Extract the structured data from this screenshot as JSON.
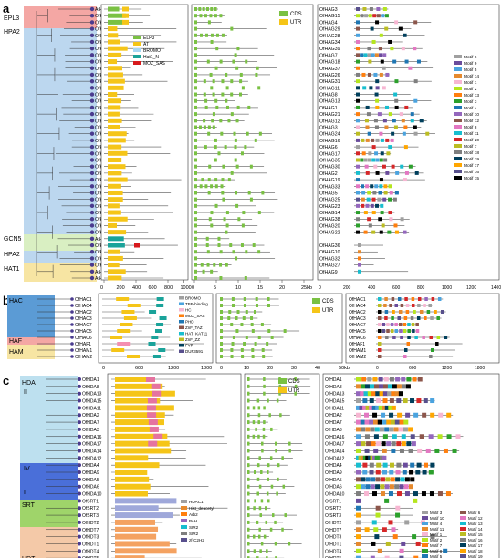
{
  "panels": {
    "a": {
      "label": "a",
      "groups": [
        {
          "name": "EPL3",
          "color": "#e8747a"
        },
        {
          "name": "HPA2",
          "color": "#5b9bd5"
        },
        {
          "name": "GCN5",
          "color": "#9fd46a"
        },
        {
          "name": "HPA2",
          "color": "#5b9bd5"
        },
        {
          "name": "HAT1",
          "color": "#f2d04f"
        }
      ],
      "genes": [
        "OfHAG3",
        "OfHAG15",
        "OfHAG4",
        "OfHAG29",
        "OfHAG28",
        "OfHAG34",
        "OfHAG39",
        "OfHAG7",
        "OfHAG18",
        "OfHAG37",
        "OfHAG26",
        "OfHAG31",
        "OfHAG11",
        "OfHAG8",
        "OfHAG13",
        "OfHAG1",
        "OfHAG21",
        "OfHAG12",
        "OfHAG3",
        "OfHAG24",
        "OfHAG16",
        "OfHAG6",
        "OfHAG17",
        "OfHAG35",
        "OfHAG30",
        "OfHAG2",
        "OfHAG19",
        "OfHAG33",
        "OfHAG5",
        "OfHAG25",
        "OfHAG23",
        "OfHAG14",
        "OfHAG38",
        "OfHAG20",
        "OfHAG22"
      ],
      "tree_genes": [
        "AtHAG3",
        "OfHAG15",
        "OfHAG4",
        "OfHAG29",
        "OfHAG28",
        "OfHAG34",
        "OfHAG39",
        "OfHAG7",
        "OfHAG18",
        "OfHAG37",
        "OfHAG26",
        "OfHAG31",
        "OfHAG11",
        "OfHAG8",
        "OfHAG13",
        "OfHAG1",
        "OfHAG21",
        "OfHAG12",
        "OfHAG3",
        "OfHAG24",
        "OfHAG16",
        "OfHAG6",
        "OfHAG17",
        "OfHAG35",
        "OfHAG30",
        "OfHAG2",
        "OfHAG19",
        "OfHAG33",
        "OfHAG5",
        "OfHAG25",
        "OfHAG23",
        "OfHAG14",
        "OfHAG38",
        "OfHAG20",
        "OfHAG22",
        "AtHAG1",
        "OfHAG36",
        "OfHAG10",
        "OfHAG32",
        "OfHAG27",
        "AtHAG9",
        "AtHAG2"
      ],
      "extra_genes": [
        "OfHAG36",
        "OfHAG10",
        "OfHAG32",
        "OfHAG27",
        "OfHAG9"
      ],
      "domain_legend": [
        "ELP3",
        "AT",
        "BROMO",
        "Hat1_N",
        "MOZ_SAS"
      ],
      "domain_colors": [
        "#7ac143",
        "#f5c518",
        "#a7d7f5",
        "#1aa39a",
        "#d7191c"
      ],
      "domain_axis": [
        "0",
        "200",
        "400",
        "600",
        "800",
        "1000"
      ],
      "gene_legend": [
        "CDS",
        "UTR"
      ],
      "gene_axis": [
        "0",
        "5",
        "10",
        "15",
        "20",
        "25kb"
      ],
      "motif_legend": [
        "Motif 6",
        "Motif 9",
        "Motif 5",
        "Motif 14",
        "Motif 1",
        "Motif 2",
        "Motif 13",
        "Motif 3",
        "Motif 4",
        "Motif 10",
        "Motif 12",
        "Motif 8",
        "Motif 11",
        "Motif 20",
        "Motif 7",
        "Motif 18",
        "Motif 19",
        "Motif 17",
        "Motif 16",
        "Motif 15"
      ],
      "motif_colors": [
        "#a0a0a0",
        "#6a4c9c",
        "#4aa3df",
        "#e68a2e",
        "#f7b6d2",
        "#b5e61d",
        "#ff7f0e",
        "#2ca02c",
        "#1f77b4",
        "#9467bd",
        "#8c564b",
        "#e377c2",
        "#17becf",
        "#d62728",
        "#bcbd22",
        "#7f7f7f",
        "#003f5c",
        "#ffa600",
        "#58508d",
        "#000000"
      ],
      "motif_axis": [
        "0",
        "100",
        "200",
        "300",
        "400",
        "500",
        "600",
        "700",
        "800",
        "900",
        "1000",
        "1100",
        "1200",
        "1300",
        "1400"
      ]
    },
    "b": {
      "label": "b",
      "groups": [
        {
          "name": "HAC"
        },
        {
          "name": "HAF"
        },
        {
          "name": "HAM"
        }
      ],
      "genes": [
        "OfHAC1",
        "OfHAC4",
        "OfHAC2",
        "OfHAC3",
        "OfHAC7",
        "OfHAC5",
        "OfHAC6",
        "OfHAF1",
        "OfHAM1",
        "OfHAM2"
      ],
      "domain_legend": [
        "BROMO",
        "TBP-binding",
        "HC",
        "MOZ_SAS",
        "PHD",
        "ZnF_TAZ",
        "HAT_KAT11",
        "ZnF_ZZ",
        "FYR",
        "DUF3591"
      ],
      "domain_axis": [
        "0",
        "600",
        "1200",
        "1800"
      ],
      "gene_legend": [
        "CDS",
        "UTR"
      ],
      "gene_axis": [
        "0",
        "10",
        "20",
        "30",
        "40",
        "50kb"
      ],
      "motif_axis": [
        "0",
        "300",
        "600",
        "900",
        "1200",
        "1500",
        "1800"
      ]
    },
    "c": {
      "label": "c",
      "groups": [
        {
          "name": "HDA"
        },
        {
          "name": "II"
        },
        {
          "name": "IV"
        },
        {
          "name": "I"
        },
        {
          "name": "SRT"
        },
        {
          "name": "HDT"
        }
      ],
      "genes": [
        "OfHDA1",
        "OfHDA8",
        "OfHDA13",
        "OfHDA15",
        "OfHDA11",
        "OfHDA2",
        "OfHDA7",
        "OfHDA3",
        "OfHDA16",
        "OfHDA17",
        "OfHDA14",
        "OfHDA12",
        "OfHDA4",
        "OfHDA9",
        "OfHDA5",
        "OfHDA6",
        "OfHDA10",
        "OfSRT1",
        "OfSRT2",
        "OfSRT3",
        "OfHDT2",
        "OfHDT7",
        "OfHDT3",
        "OfHDT1",
        "OfHDT4",
        "OfHDT5",
        "OfHDT6"
      ],
      "domain_legend": [
        "HDAC1",
        "Hist_deacetyl",
        "Arb2",
        "PAH",
        "SIR2",
        "SIR2",
        "zf-C2H2"
      ],
      "domain_axis": [
        "0",
        "100",
        "200",
        "300",
        "400",
        "500",
        "600",
        "700"
      ],
      "gene_legend": [
        "CDS",
        "UTR"
      ],
      "gene_axis": [
        "0",
        "3",
        "6",
        "9",
        "12",
        "15",
        "18",
        "21",
        "24kb"
      ],
      "motif_legend": [
        "Motif 3",
        "Motif 10",
        "Motif 4",
        "Motif 11",
        "Motif 1",
        "Motif 2",
        "Motif 7",
        "Motif 8",
        "Motif 5",
        "Motif 9",
        "Motif 6",
        "Motif 12",
        "Motif 13",
        "Motif 14",
        "Motif 15",
        "Motif 16",
        "Motif 17",
        "Motif 18",
        "Motif 19",
        "Motif 20"
      ],
      "motif_axis": [
        "0",
        "100",
        "200",
        "300",
        "400",
        "500",
        "600",
        "700"
      ]
    }
  }
}
